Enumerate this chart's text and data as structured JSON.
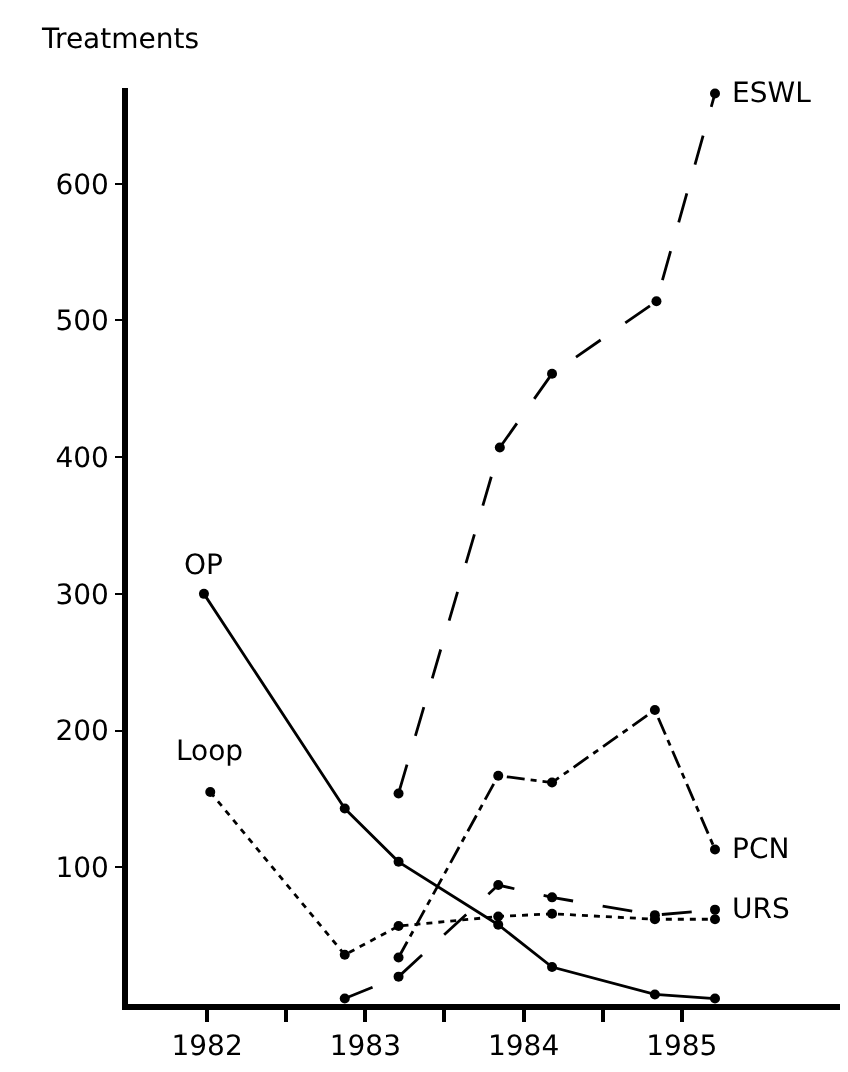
{
  "chart_data": {
    "type": "line",
    "ylabel": "Treatments",
    "xlim": [
      1981.5,
      1986
    ],
    "ylim": [
      0,
      670
    ],
    "xticks": [
      1982,
      {
        "value": 1982.5,
        "label": null
      },
      1983,
      {
        "value": 1983.5,
        "label": null
      },
      1984,
      {
        "value": 1984.5,
        "label": null
      },
      1985
    ],
    "yticks": [
      100,
      200,
      300,
      400,
      500,
      600
    ],
    "grid": false,
    "legend": false,
    "marker": "circle",
    "series": [
      {
        "name": "OP",
        "color": "#000000",
        "line_style": "solid",
        "x": [
          1981.98,
          1982.87,
          1983.21,
          1983.84,
          1984.18,
          1984.83,
          1985.21
        ],
        "values": [
          300,
          143,
          104,
          58,
          27,
          7,
          4
        ]
      },
      {
        "name": "Loop",
        "color": "#000000",
        "line_style": "dotted",
        "x": [
          1982.02,
          1982.87,
          1983.21,
          1983.84,
          1984.18,
          1984.83,
          1985.21
        ],
        "values": [
          155,
          36,
          57,
          64,
          66,
          62,
          62
        ]
      },
      {
        "name": "URS",
        "color": "#000000",
        "line_style": "dashed",
        "x": [
          1982.87,
          1983.21,
          1983.84,
          1984.18,
          1984.83,
          1985.21
        ],
        "values": [
          4,
          20,
          87,
          78,
          65,
          69
        ]
      },
      {
        "name": "PCN",
        "color": "#000000",
        "line_style": "dashdot",
        "x": [
          1983.21,
          1983.84,
          1984.18,
          1984.83,
          1985.21
        ],
        "values": [
          34,
          167,
          162,
          215,
          113
        ]
      },
      {
        "name": "ESWL",
        "color": "#000000",
        "line_style": "dashed",
        "x": [
          1983.21,
          1983.85,
          1984.18,
          1984.84,
          1985.21
        ],
        "values": [
          154,
          407,
          461,
          514,
          666
        ]
      }
    ]
  }
}
